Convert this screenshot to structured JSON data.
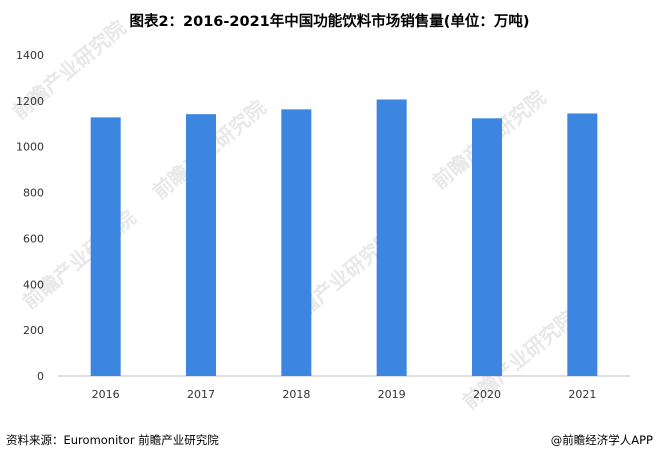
{
  "chart_data": {
    "type": "bar",
    "title": "图表2：2016-2021年中国功能饮料市场销售量(单位：万吨)",
    "categories": [
      "2016",
      "2017",
      "2018",
      "2019",
      "2020",
      "2021"
    ],
    "values": [
      1128,
      1142,
      1163,
      1206,
      1124,
      1145
    ],
    "ylim": [
      0,
      1400
    ],
    "yticks": [
      0,
      200,
      400,
      600,
      800,
      1000,
      1200,
      1400
    ],
    "grid": false,
    "bar_color": "#3d86e0"
  },
  "source_text": "资料来源：Euromonitor 前瞻产业研究院",
  "brand_text": "@前瞻经济学人APP",
  "watermark_text": "前瞻产业研究院"
}
